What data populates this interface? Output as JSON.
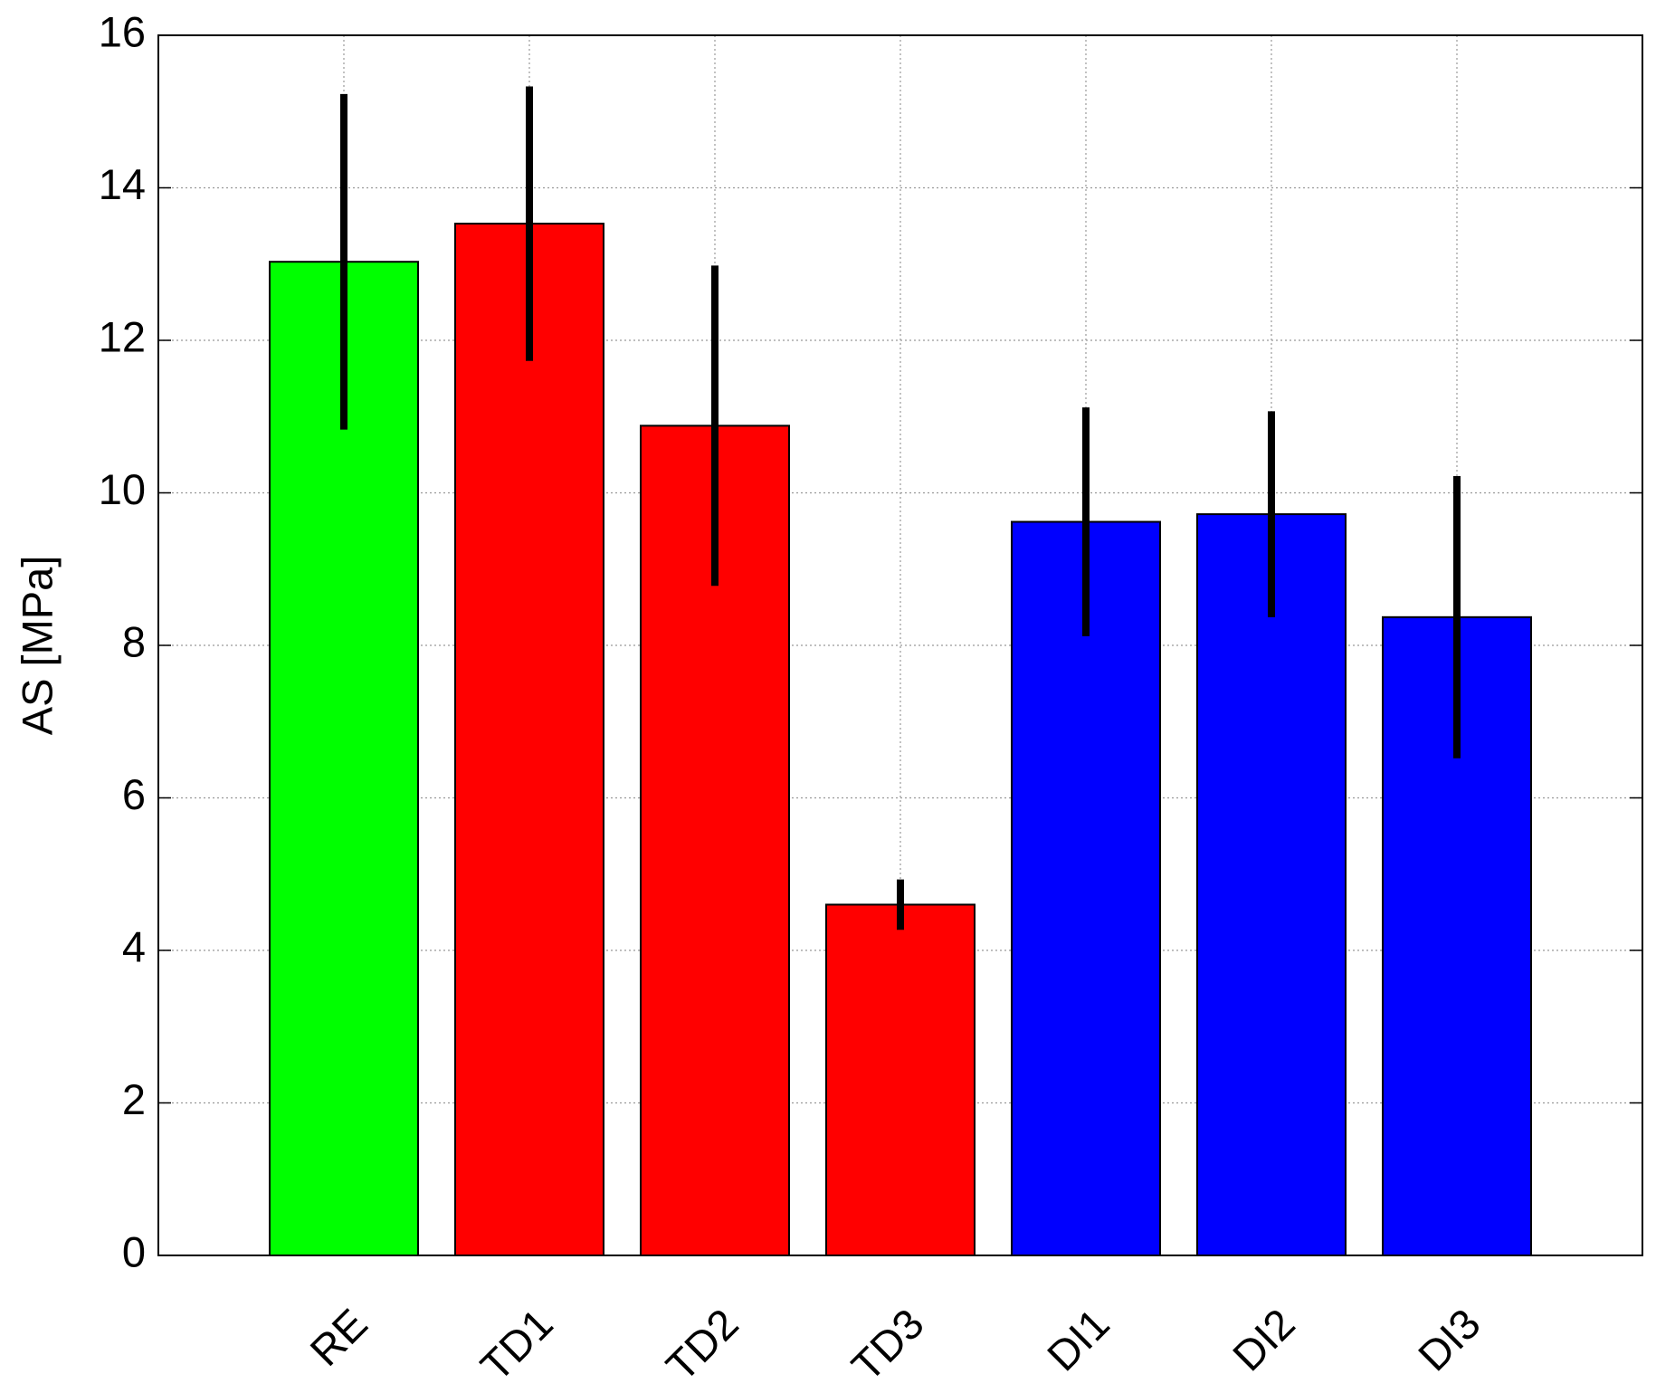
{
  "chart_data": {
    "type": "bar",
    "y_label": "AS [MPa]",
    "categories": [
      "RE",
      "TD1",
      "TD2",
      "TD3",
      "DI1",
      "DI2",
      "DI3"
    ],
    "values": [
      13.03,
      13.53,
      10.88,
      4.6,
      9.62,
      9.72,
      8.37
    ],
    "errors": [
      2.2,
      1.8,
      2.1,
      0.33,
      1.5,
      1.35,
      1.85
    ],
    "colors": [
      "#00ff00",
      "#ff0000",
      "#ff0000",
      "#ff0000",
      "#0000ff",
      "#0000ff",
      "#0000ff"
    ],
    "ylim": [
      0,
      16
    ],
    "yticks": [
      0,
      2,
      4,
      6,
      8,
      10,
      12,
      14,
      16
    ],
    "grid": true
  }
}
